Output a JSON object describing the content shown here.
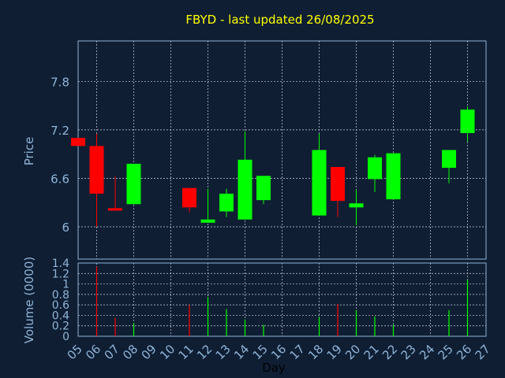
{
  "chart_data": [
    {
      "type": "candlestick",
      "title": "FBYD - last updated 26/08/2025",
      "ylabel": "Price",
      "ylim": [
        5.6,
        7.2
      ],
      "yticks": [
        6,
        6.6,
        7.2,
        7.8
      ],
      "ytick_labels": [
        "6",
        "6.6",
        "7.2",
        "7.8"
      ],
      "grid": true,
      "colors": {
        "up": "#00ff00",
        "down": "#ff0000",
        "title": "#ffff00",
        "axis_text": "#8fb4d8",
        "frame": "#8fb4d8",
        "background": "#0f1e33"
      },
      "candles": [
        {
          "day": "05",
          "open": 7.1,
          "close": 7.0,
          "high": 7.1,
          "low": 7.0
        },
        {
          "day": "06",
          "open": 7.0,
          "close": 6.41,
          "high": 7.15,
          "low": 6.0
        },
        {
          "day": "07",
          "open": 6.23,
          "close": 6.2,
          "high": 6.62,
          "low": 6.2
        },
        {
          "day": "08",
          "open": 6.28,
          "close": 6.78,
          "high": 6.78,
          "low": 6.28
        },
        {
          "day": "11",
          "open": 6.48,
          "close": 6.24,
          "high": 6.48,
          "low": 6.18
        },
        {
          "day": "12",
          "open": 6.05,
          "close": 6.09,
          "high": 6.47,
          "low": 6.05
        },
        {
          "day": "13",
          "open": 6.19,
          "close": 6.41,
          "high": 6.47,
          "low": 6.12
        },
        {
          "day": "14",
          "open": 6.09,
          "close": 6.83,
          "high": 7.18,
          "low": 6.09
        },
        {
          "day": "15",
          "open": 6.33,
          "close": 6.63,
          "high": 6.63,
          "low": 6.28
        },
        {
          "day": "18",
          "open": 6.14,
          "close": 6.95,
          "high": 7.15,
          "low": 6.14
        },
        {
          "day": "19",
          "open": 6.74,
          "close": 6.32,
          "high": 6.74,
          "low": 6.12
        },
        {
          "day": "20",
          "open": 6.24,
          "close": 6.29,
          "high": 6.46,
          "low": 6.02
        },
        {
          "day": "21",
          "open": 6.59,
          "close": 6.86,
          "high": 6.89,
          "low": 6.43
        },
        {
          "day": "22",
          "open": 6.34,
          "close": 6.91,
          "high": 6.91,
          "low": 6.34
        },
        {
          "day": "25",
          "open": 6.73,
          "close": 6.95,
          "high": 6.95,
          "low": 6.54
        },
        {
          "day": "26",
          "open": 7.16,
          "close": 7.45,
          "high": 7.49,
          "low": 7.05
        }
      ]
    },
    {
      "type": "bar",
      "ylabel": "Volume (0000)",
      "xlabel": "Day",
      "ylim": [
        0,
        1.4
      ],
      "yticks": [
        0,
        0.2,
        0.4,
        0.6,
        0.8,
        1,
        1.2,
        1.4
      ],
      "ytick_labels": [
        "0",
        "0.2",
        "0.4",
        "0.6",
        "0.8",
        "1",
        "1.2",
        "1.4"
      ],
      "categories": [
        "05",
        "06",
        "07",
        "08",
        "09",
        "10",
        "11",
        "12",
        "13",
        "14",
        "15",
        "16",
        "17",
        "18",
        "19",
        "20",
        "21",
        "22",
        "23",
        "24",
        "25",
        "26",
        "27"
      ],
      "values": [
        0,
        1.33,
        0.35,
        0.25,
        0,
        0,
        0.6,
        0.75,
        0.52,
        0.32,
        0.22,
        0,
        0,
        0.37,
        0.62,
        0.5,
        0.38,
        0.22,
        0,
        0,
        0.5,
        1.08,
        0
      ],
      "bar_colors": [
        "#00ff00",
        "#ff0000",
        "#ff0000",
        "#00ff00",
        "#00ff00",
        "#00ff00",
        "#ff0000",
        "#00ff00",
        "#00ff00",
        "#00ff00",
        "#00ff00",
        "#00ff00",
        "#00ff00",
        "#00ff00",
        "#ff0000",
        "#00ff00",
        "#00ff00",
        "#00ff00",
        "#00ff00",
        "#00ff00",
        "#00ff00",
        "#00ff00",
        "#00ff00"
      ]
    }
  ]
}
